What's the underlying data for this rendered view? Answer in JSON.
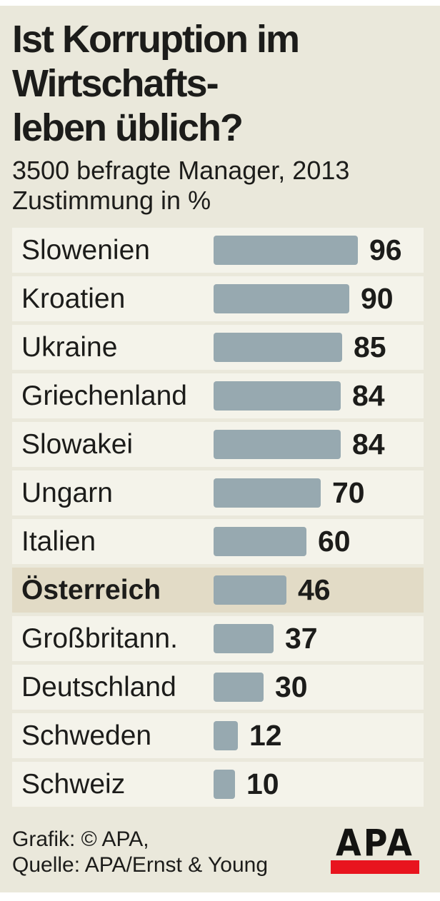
{
  "title_lines": [
    "Ist Korruption im",
    "Wirtschafts-",
    "leben üblich?"
  ],
  "subtitle_lines": [
    "3500 befragte Manager, 2013",
    "Zustimmung in %"
  ],
  "footer_lines": [
    "Grafik: © APA,",
    "Quelle: APA/Ernst & Young"
  ],
  "logo_text": "APA",
  "colors": {
    "frame": "#ffffff",
    "background": "#eae8db",
    "row_bg": "#f4f3ea",
    "highlight_row_bg": "#e2dbc6",
    "bar": "#97a9b0",
    "text": "#1c1c1a",
    "logo_red": "#e8141e"
  },
  "chart_data": {
    "type": "bar",
    "orientation": "horizontal",
    "title": "Ist Korruption im Wirtschaftsleben üblich?",
    "subtitle": "3500 befragte Manager, 2013",
    "unit_label": "Zustimmung in %",
    "categories": [
      "Slowenien",
      "Kroatien",
      "Ukraine",
      "Griechenland",
      "Slowakei",
      "Ungarn",
      "Italien",
      "Österreich",
      "Großbritann.",
      "Deutschland",
      "Schweden",
      "Schweiz"
    ],
    "values": [
      96,
      90,
      85,
      84,
      84,
      70,
      60,
      46,
      37,
      30,
      12,
      10
    ],
    "highlighted_category": "Österreich",
    "xlim": [
      0,
      100
    ],
    "grid": false,
    "legend": false,
    "value_labels": "end-of-bar"
  }
}
